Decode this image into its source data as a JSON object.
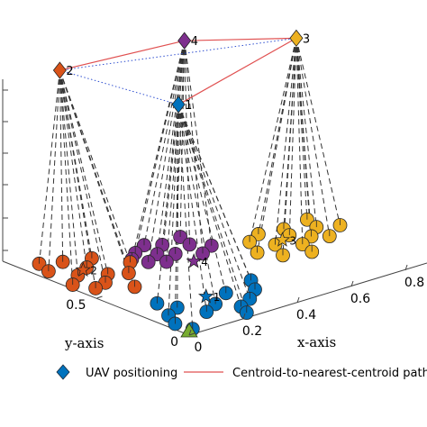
{
  "chart_data": {
    "type": "scatter",
    "projection": "3d",
    "xlabel": "x-axis",
    "ylabel": "y-axis",
    "x_ticks": [
      "0",
      "0.2",
      "0.4",
      "0.6",
      "0.8"
    ],
    "y_ticks": [
      "0",
      "0.5"
    ],
    "base_station": {
      "shape": "triangle",
      "color": "#77ac30",
      "x": 0,
      "y": 0
    },
    "colors": {
      "1": "#0072bd",
      "2": "#d95319",
      "3": "#edb120",
      "4": "#7e2f8e",
      "red_path": "#e05050",
      "blue_path": "#3050d0",
      "beam": "#333333"
    },
    "uavs": [
      {
        "label": "1",
        "x": 0.22,
        "y": 0.38
      },
      {
        "label": "2",
        "x": 0.15,
        "y": 0.92
      },
      {
        "label": "3",
        "x": 0.82,
        "y": 0.62
      },
      {
        "label": "4",
        "x": 0.57,
        "y": 0.86
      }
    ],
    "centroids": [
      {
        "label": "1",
        "x": 0.24,
        "y": 0.26
      },
      {
        "label": "2",
        "x": 0.12,
        "y": 0.75
      },
      {
        "label": "3",
        "x": 0.7,
        "y": 0.52
      },
      {
        "label": "4",
        "x": 0.4,
        "y": 0.56
      }
    ],
    "clusters": [
      {
        "cluster": "1",
        "points": [
          [
            0.04,
            0.04
          ],
          [
            0.03,
            0.12
          ],
          [
            0.06,
            0.2
          ],
          [
            0.12,
            0.24
          ],
          [
            0.1,
            0.32
          ],
          [
            0.16,
            0.14
          ],
          [
            0.22,
            0.18
          ],
          [
            0.26,
            0.1
          ],
          [
            0.32,
            0.14
          ],
          [
            0.3,
            0.24
          ],
          [
            0.38,
            0.2
          ],
          [
            0.42,
            0.28
          ],
          [
            0.24,
            0.04
          ]
        ]
      },
      {
        "cluster": "2",
        "points": [
          [
            0.02,
            0.66
          ],
          [
            0.05,
            0.58
          ],
          [
            0.1,
            0.6
          ],
          [
            0.14,
            0.5
          ],
          [
            0.08,
            0.72
          ],
          [
            0.15,
            0.66
          ],
          [
            0.14,
            0.76
          ],
          [
            0.2,
            0.62
          ],
          [
            0.2,
            0.82
          ],
          [
            0.12,
            0.86
          ],
          [
            0.04,
            0.82
          ],
          [
            0.06,
            0.9
          ],
          [
            0.26,
            0.7
          ]
        ]
      },
      {
        "cluster": "3",
        "points": [
          [
            0.58,
            0.48
          ],
          [
            0.62,
            0.4
          ],
          [
            0.66,
            0.5
          ],
          [
            0.72,
            0.44
          ],
          [
            0.74,
            0.54
          ],
          [
            0.78,
            0.48
          ],
          [
            0.82,
            0.44
          ],
          [
            0.84,
            0.54
          ],
          [
            0.86,
            0.62
          ],
          [
            0.76,
            0.6
          ],
          [
            0.68,
            0.62
          ],
          [
            0.62,
            0.58
          ],
          [
            0.9,
            0.5
          ],
          [
            0.7,
            0.36
          ]
        ]
      },
      {
        "cluster": "4",
        "points": [
          [
            0.28,
            0.72
          ],
          [
            0.3,
            0.66
          ],
          [
            0.34,
            0.62
          ],
          [
            0.36,
            0.7
          ],
          [
            0.4,
            0.66
          ],
          [
            0.42,
            0.76
          ],
          [
            0.48,
            0.7
          ],
          [
            0.5,
            0.78
          ],
          [
            0.38,
            0.8
          ],
          [
            0.46,
            0.6
          ],
          [
            0.52,
            0.64
          ],
          [
            0.32,
            0.76
          ]
        ]
      }
    ],
    "legend": [
      {
        "marker": "diamond",
        "color": "#0072bd",
        "label": "UAV positioning"
      },
      {
        "marker": "line",
        "color": "#e05050",
        "label": "Centroid-to-nearest-centroid path"
      }
    ],
    "legend_position": "bottom"
  }
}
